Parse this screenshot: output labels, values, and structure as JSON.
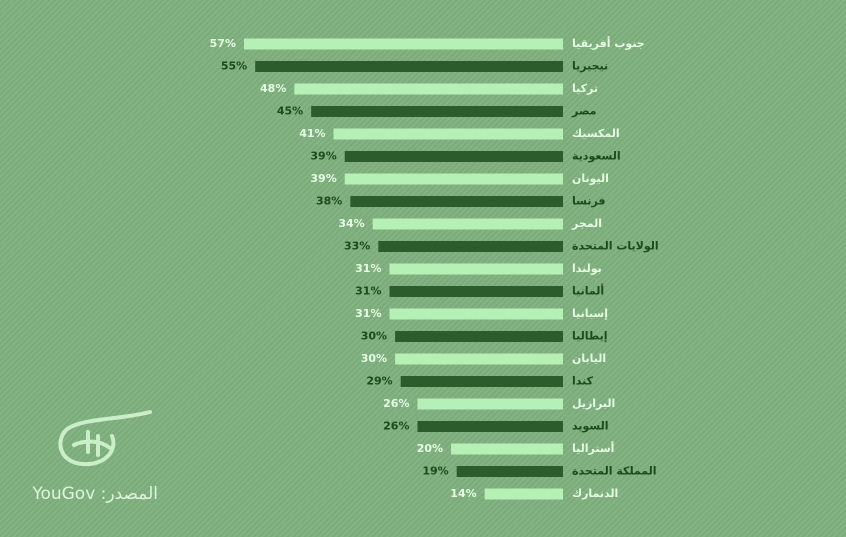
{
  "chart_data": {
    "type": "bar",
    "orientation": "horizontal",
    "categories": [
      "جنوب أفريقيا",
      "نيجيريا",
      "تركيا",
      "مصر",
      "المكسيك",
      "السعودية",
      "اليونان",
      "فرنسا",
      "المجر",
      "الولايات المتحدة",
      "بولندا",
      "ألمانيا",
      "إسبانيا",
      "إيطاليا",
      "اليابان",
      "كندا",
      "البرازيل",
      "السويد",
      "أستراليا",
      "المملكة المتحدة",
      "الدنمارك"
    ],
    "values": [
      57,
      55,
      48,
      45,
      41,
      39,
      39,
      38,
      34,
      33,
      31,
      31,
      31,
      30,
      30,
      29,
      26,
      26,
      20,
      19,
      14
    ],
    "value_labels": [
      "57%",
      "55%",
      "48%",
      "45%",
      "41%",
      "39%",
      "39%",
      "38%",
      "34%",
      "33%",
      "31%",
      "31%",
      "31%",
      "30%",
      "30%",
      "29%",
      "26%",
      "26%",
      "20%",
      "19%",
      "14%"
    ],
    "colors": [
      "#b6f0b6",
      "#2c5c2c",
      "#b6f0b6",
      "#2c5c2c",
      "#b6f0b6",
      "#2c5c2c",
      "#b6f0b6",
      "#2c5c2c",
      "#b6f0b6",
      "#2c5c2c",
      "#b6f0b6",
      "#2c5c2c",
      "#b6f0b6",
      "#2c5c2c",
      "#b6f0b6",
      "#2c5c2c",
      "#b6f0b6",
      "#2c5c2c",
      "#b6f0b6",
      "#2c5c2c",
      "#b6f0b6"
    ]
  },
  "source": "المصدر: YouGov"
}
